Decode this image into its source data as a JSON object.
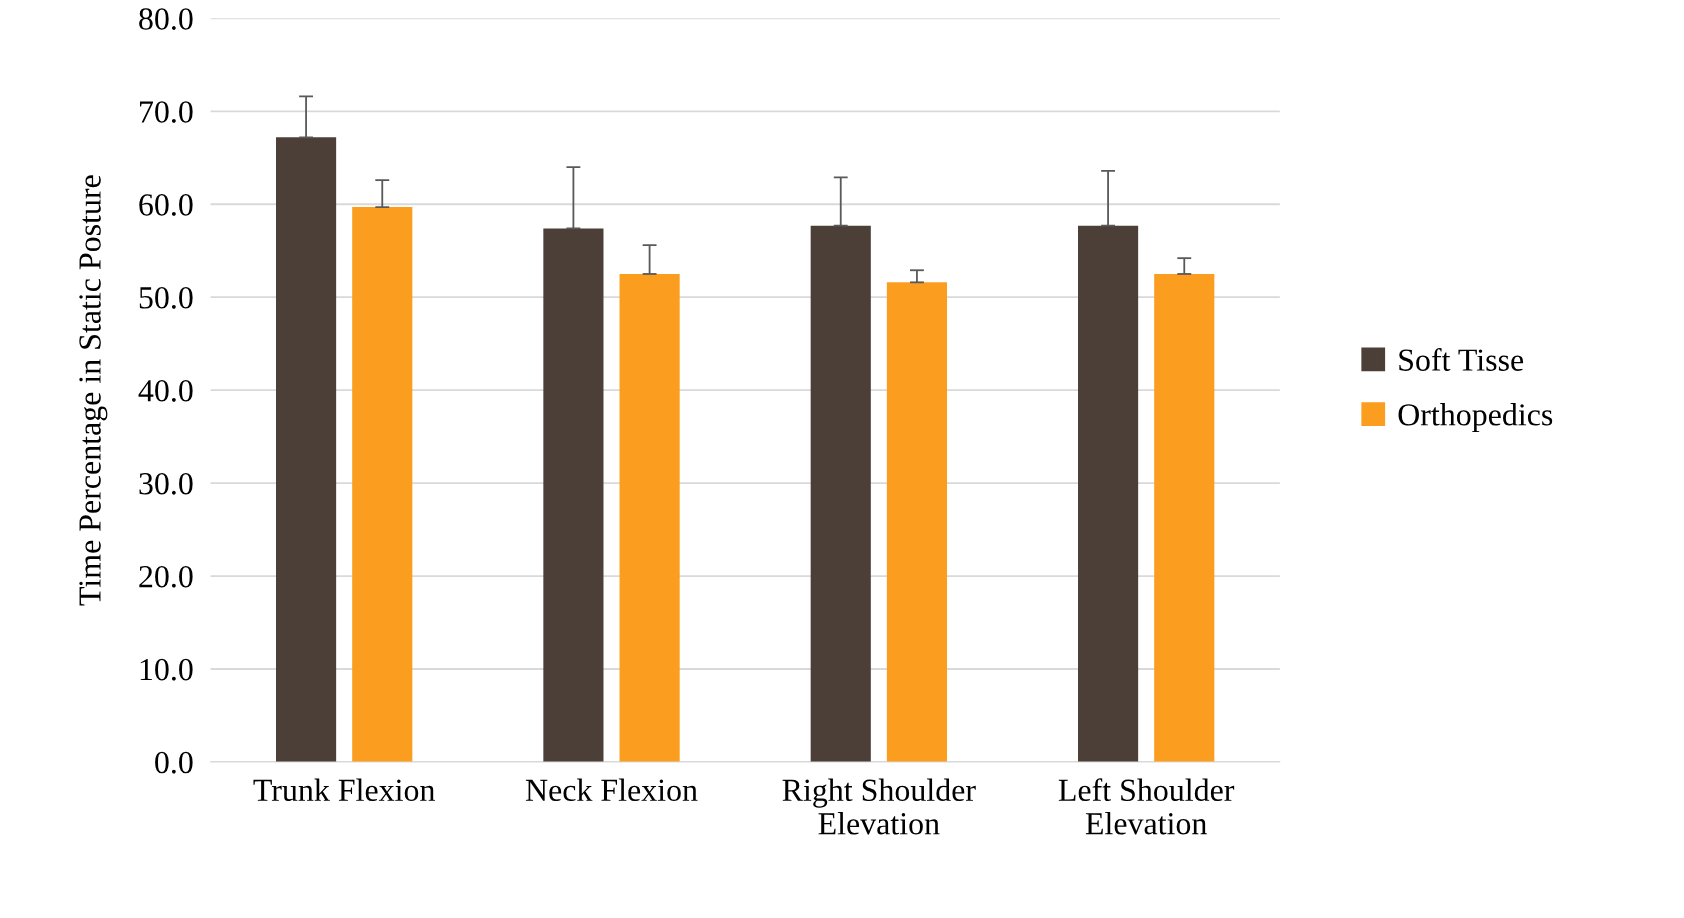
{
  "chart_data": {
    "type": "bar",
    "ylabel": "Time Percentage in Static Posture",
    "categories": [
      "Trunk Flexion",
      "Neck Flexion",
      "Right Shoulder\nElevation",
      "Left Shoulder\nElevation"
    ],
    "series": [
      {
        "name": "Soft Tisse",
        "color": "#4b3f37",
        "values": [
          67.2,
          57.4,
          57.7,
          57.7
        ],
        "errors": [
          [
            67.2,
            71.6
          ],
          [
            57.4,
            64.0
          ],
          [
            57.7,
            62.9
          ],
          [
            57.7,
            63.6
          ]
        ]
      },
      {
        "name": "Orthopedics",
        "color": "#fb9d1f",
        "values": [
          59.7,
          52.5,
          51.6,
          52.5
        ],
        "errors": [
          [
            59.7,
            62.6
          ],
          [
            52.5,
            55.6
          ],
          [
            51.6,
            52.9
          ],
          [
            52.5,
            54.2
          ]
        ]
      }
    ],
    "ylim": [
      0,
      80
    ],
    "yticks": [
      {
        "value": 0,
        "label": "0.0"
      },
      {
        "value": 10,
        "label": "10.0"
      },
      {
        "value": 20,
        "label": "20.0"
      },
      {
        "value": 30,
        "label": "30.0"
      },
      {
        "value": 40,
        "label": "40.0"
      },
      {
        "value": 50,
        "label": "50.0"
      },
      {
        "value": 60,
        "label": "60.0"
      },
      {
        "value": 70,
        "label": "70.0"
      },
      {
        "value": 80,
        "label": "80.0"
      }
    ],
    "grid": "y",
    "legend": "right"
  }
}
